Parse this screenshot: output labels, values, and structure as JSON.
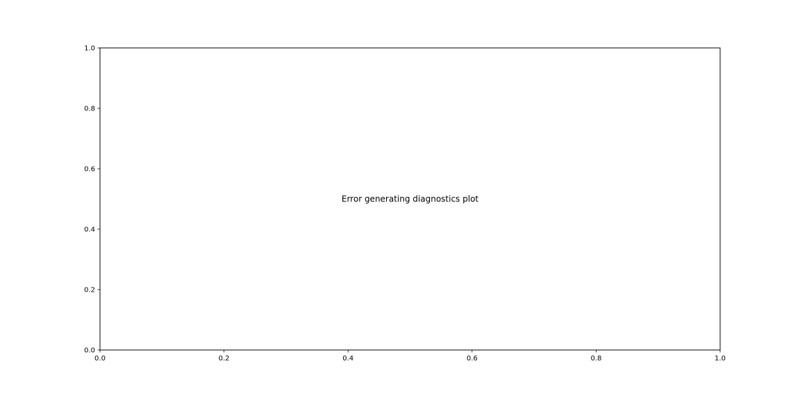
{
  "chart_data": {
    "type": "scatter",
    "title": "",
    "xlabel": "",
    "ylabel": "",
    "xlim": [
      0,
      1
    ],
    "ylim": [
      0,
      1
    ],
    "x_ticks": [
      "0.0",
      "0.2",
      "0.4",
      "0.6",
      "0.8",
      "1.0"
    ],
    "y_ticks": [
      "0.0",
      "0.2",
      "0.4",
      "0.6",
      "0.8",
      "1.0"
    ],
    "grid": false,
    "series": [],
    "annotations": [
      {
        "text": "Error generating diagnostics plot",
        "x": 0.5,
        "y": 0.5
      }
    ],
    "colors": {
      "axes": "#000000",
      "background": "#ffffff"
    }
  }
}
